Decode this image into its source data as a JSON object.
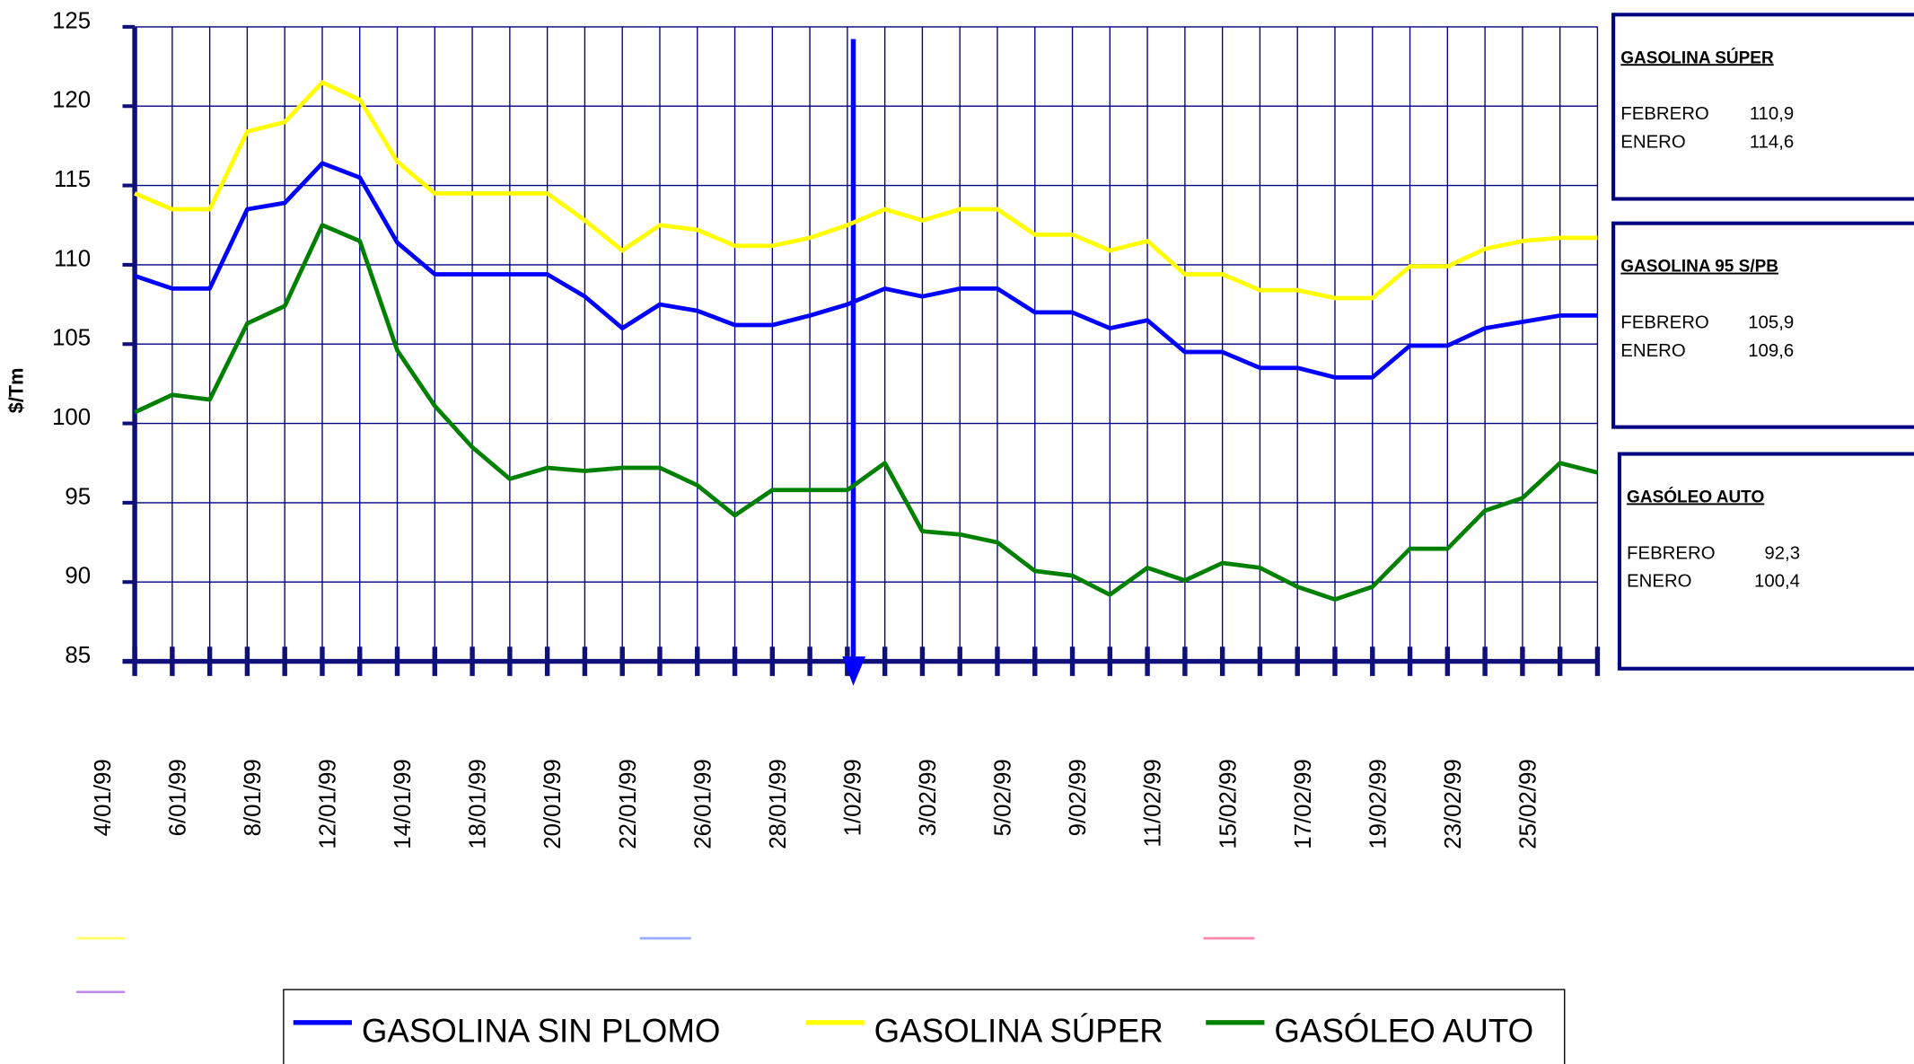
{
  "chart_data": {
    "type": "line",
    "y_label": "$/Tm",
    "categories": [
      "4/01/99",
      null,
      "6/01/99",
      null,
      "8/01/99",
      null,
      "12/01/99",
      null,
      "14/01/99",
      null,
      "18/01/99",
      null,
      "20/01/99",
      null,
      "22/01/99",
      null,
      "26/01/99",
      null,
      "28/01/99",
      null,
      "1/02/99",
      null,
      "3/02/99",
      null,
      "5/02/99",
      null,
      "9/02/99",
      null,
      "11/02/99",
      null,
      "15/02/99",
      null,
      "17/02/99",
      null,
      "19/02/99",
      null,
      "23/02/99",
      null,
      "25/02/99",
      null
    ],
    "series": [
      {
        "name": "GASOLINA SIN PLOMO",
        "color": "#0000ff",
        "values": [
          109.3,
          108.5,
          108.5,
          113.5,
          113.9,
          116.4,
          115.5,
          111.4,
          109.4,
          109.4,
          109.4,
          109.4,
          108,
          106,
          107.5,
          107.1,
          106.2,
          106.2,
          106.8,
          107.5,
          108.5,
          108,
          108.5,
          108.5,
          107,
          107,
          106,
          106.5,
          104.5,
          104.5,
          103.5,
          103.5,
          102.9,
          102.9,
          104.9,
          104.9,
          106,
          106.4,
          106.8,
          106.8
        ]
      },
      {
        "name": "GASOLINA SÚPER",
        "color": "#ffff00",
        "values": [
          114.5,
          113.5,
          113.5,
          118.4,
          119,
          121.5,
          120.4,
          116.5,
          114.5,
          114.5,
          114.5,
          114.5,
          112.8,
          110.9,
          112.5,
          112.2,
          111.2,
          111.2,
          111.7,
          112.5,
          113.5,
          112.8,
          113.5,
          113.5,
          111.9,
          111.9,
          110.9,
          111.5,
          109.4,
          109.4,
          108.4,
          108.4,
          107.9,
          107.9,
          109.9,
          109.9,
          111,
          111.5,
          111.7,
          111.7
        ]
      },
      {
        "name": "GASÓLEO AUTO",
        "color": "#008000",
        "values": [
          100.7,
          101.8,
          101.5,
          106.3,
          107.4,
          112.5,
          111.5,
          104.6,
          101.1,
          98.5,
          96.5,
          97.2,
          97,
          97.2,
          97.2,
          96.1,
          94.2,
          95.8,
          95.8,
          95.8,
          97.5,
          93.2,
          93,
          92.5,
          90.7,
          90.4,
          89.2,
          90.9,
          90.1,
          91.2,
          90.9,
          89.7,
          88.9,
          89.7,
          92.1,
          92.1,
          94.5,
          95.3,
          97.5,
          96.9
        ]
      }
    ],
    "ylim": [
      85,
      125
    ],
    "yticks": [
      85,
      90,
      95,
      100,
      105,
      110,
      115,
      120,
      125
    ],
    "grid": true,
    "grid_color": "#000080",
    "axis_color": "#10107a"
  },
  "panels": [
    {
      "title": "GASOLINA SÚPER",
      "rows": [
        {
          "label": "FEBRERO",
          "value": "110,9"
        },
        {
          "label": "ENERO",
          "value": "114,6"
        }
      ]
    },
    {
      "title": "GASOLINA  95 S/PB",
      "rows": [
        {
          "label": "FEBRERO",
          "value": "105,9"
        },
        {
          "label": "ENERO",
          "value": "109,6"
        }
      ]
    },
    {
      "title": "GASÓLEO  AUTO",
      "rows": [
        {
          "label": "FEBRERO",
          "value": "92,3"
        },
        {
          "label": "ENERO",
          "value": "100,4"
        }
      ]
    }
  ]
}
